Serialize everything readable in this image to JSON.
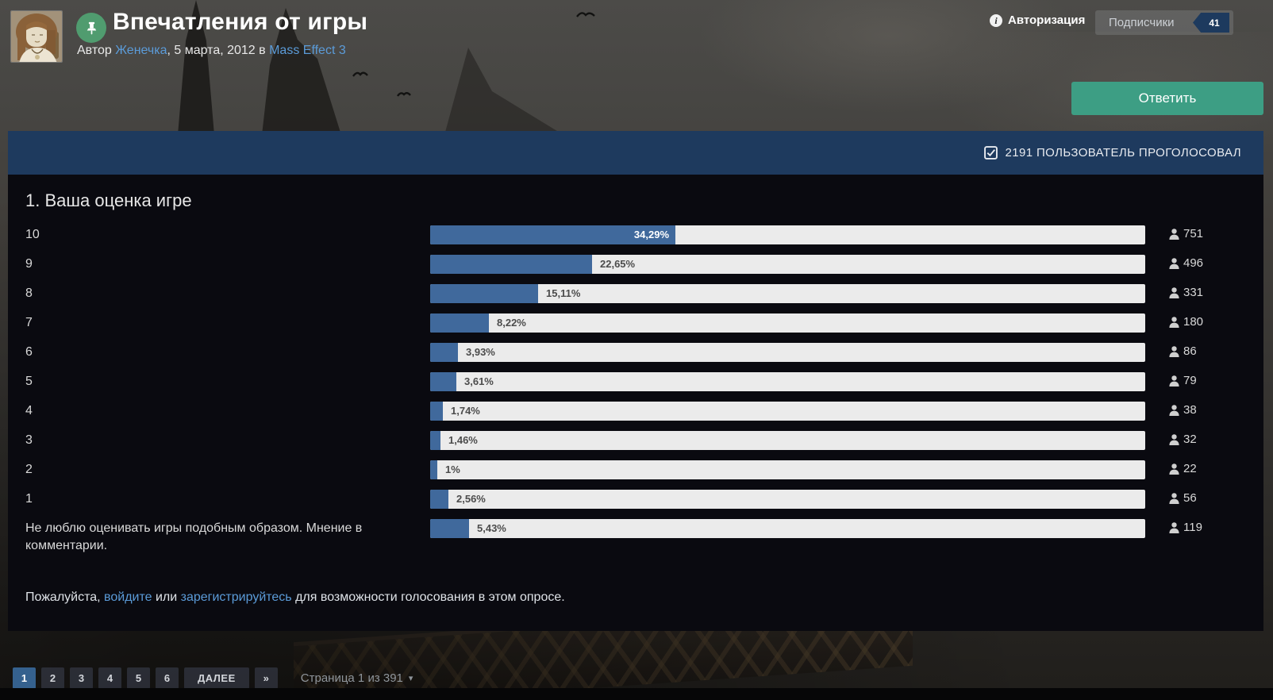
{
  "header": {
    "title": "Впечатления от игры",
    "byline_prefix": "Автор ",
    "author_link": "Женечка",
    "byline_middle": ", 5 марта, 2012 в ",
    "forum_link": "Mass Effect 3",
    "auth_label": "Авторизация",
    "subscribers_label": "Подписчики",
    "subscribers_count": "41",
    "reply_label": "Ответить"
  },
  "poll": {
    "voted_banner": "2191 ПОЛЬЗОВАТЕЛЬ ПРОГОЛОСОВАЛ",
    "question_title": "1. Ваша оценка игре",
    "options": [
      {
        "label": "10",
        "percent": 34.29,
        "percent_label": "34,29%",
        "votes": "751"
      },
      {
        "label": "9",
        "percent": 22.65,
        "percent_label": "22,65%",
        "votes": "496"
      },
      {
        "label": "8",
        "percent": 15.11,
        "percent_label": "15,11%",
        "votes": "331"
      },
      {
        "label": "7",
        "percent": 8.22,
        "percent_label": "8,22%",
        "votes": "180"
      },
      {
        "label": "6",
        "percent": 3.93,
        "percent_label": "3,93%",
        "votes": "86"
      },
      {
        "label": "5",
        "percent": 3.61,
        "percent_label": "3,61%",
        "votes": "79"
      },
      {
        "label": "4",
        "percent": 1.74,
        "percent_label": "1,74%",
        "votes": "38"
      },
      {
        "label": "3",
        "percent": 1.46,
        "percent_label": "1,46%",
        "votes": "32"
      },
      {
        "label": "2",
        "percent": 1.0,
        "percent_label": "1%",
        "votes": "22"
      },
      {
        "label": "1",
        "percent": 2.56,
        "percent_label": "2,56%",
        "votes": "56"
      },
      {
        "label": "Не люблю оценивать игры подобным образом. Мнение в комментарии.",
        "percent": 5.43,
        "percent_label": "5,43%",
        "votes": "119"
      }
    ],
    "login_prompt": {
      "before": "Пожалуйста, ",
      "login_link": "войдите",
      "middle": " или ",
      "register_link": "зарегистрируйтесь",
      "after": " для возможности голосования в этом опросе."
    }
  },
  "pagination": {
    "pages": [
      "1",
      "2",
      "3",
      "4",
      "5",
      "6"
    ],
    "active_page": "1",
    "next_label": "ДАЛЕЕ",
    "last_label": "»",
    "page_status": "Страница 1 из 391",
    "caret": "▾"
  },
  "colors": {
    "accent_blue_bar": "#40699c",
    "bar_track": "#ebebeb",
    "voted_banner_bg": "#1e3a5e",
    "reply_button": "#3d9e84",
    "pin_badge": "#509c6f",
    "link_blue": "#5b9bd8",
    "active_page_bg": "#35618e",
    "panel_bg": "#0a0a10"
  },
  "chart_data": {
    "type": "bar",
    "title": "1. Ваша оценка игре",
    "categories": [
      "10",
      "9",
      "8",
      "7",
      "6",
      "5",
      "4",
      "3",
      "2",
      "1",
      "Не люблю оценивать игры подобным образом. Мнение в комментарии."
    ],
    "series": [
      {
        "name": "percent",
        "values": [
          34.29,
          22.65,
          15.11,
          8.22,
          3.93,
          3.61,
          1.74,
          1.46,
          1.0,
          2.56,
          5.43
        ]
      },
      {
        "name": "votes",
        "values": [
          751,
          496,
          331,
          180,
          86,
          79,
          38,
          32,
          22,
          56,
          119
        ]
      }
    ],
    "xlabel": "",
    "ylabel": "",
    "xlim": [
      0,
      100
    ],
    "grid": false,
    "legend_position": "none"
  }
}
